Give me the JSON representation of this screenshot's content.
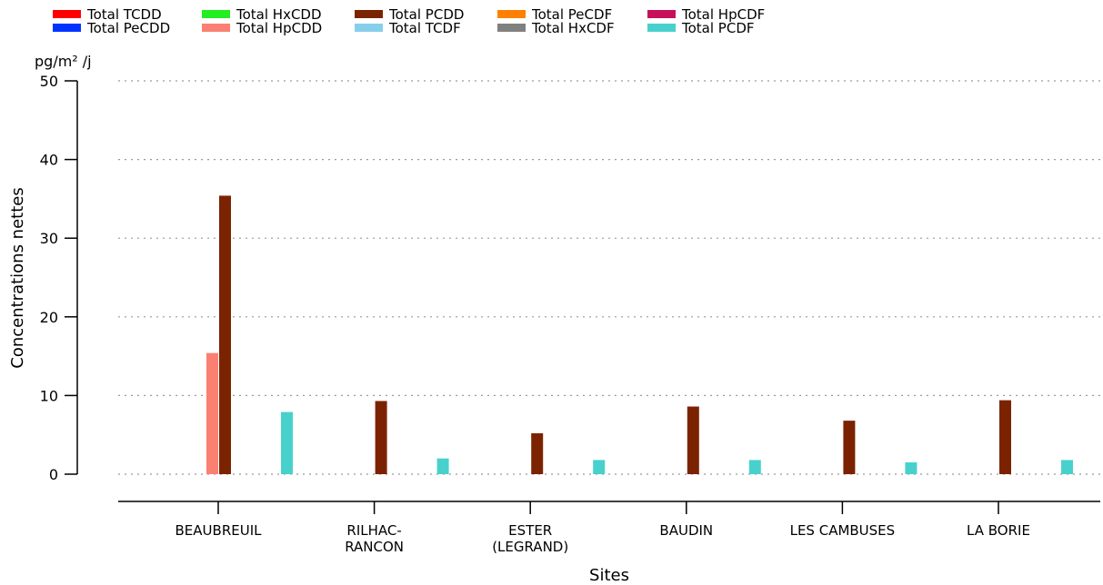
{
  "chart_data": {
    "type": "bar",
    "xlabel": "Sites",
    "ylabel": "Concentrations nettes",
    "unit": "pg/m² /j",
    "ylim": [
      0,
      50
    ],
    "yticks": [
      0,
      10,
      20,
      30,
      40,
      50
    ],
    "grid": true,
    "legend_position": "top",
    "categories": [
      "BEAUBREUIL",
      "RILHAC-\nRANCON",
      "ESTER\n(LEGRAND)",
      "BAUDIN",
      "LES CAMBUSES",
      "LA BORIE"
    ],
    "series": [
      {
        "name": "Total TCDD",
        "color": "#ff0000",
        "values": [
          0,
          0,
          0,
          0,
          0,
          0
        ]
      },
      {
        "name": "Total PeCDD",
        "color": "#0033ff",
        "values": [
          0,
          0,
          0,
          0,
          0,
          0
        ]
      },
      {
        "name": "Total HxCDD",
        "color": "#22ee22",
        "values": [
          0,
          0,
          0,
          0,
          0,
          0
        ]
      },
      {
        "name": "Total HpCDD",
        "color": "#fa8072",
        "values": [
          15.4,
          0,
          0,
          0,
          0,
          0
        ]
      },
      {
        "name": "Total PCDD",
        "color": "#7b2300",
        "values": [
          35.4,
          9.3,
          5.2,
          8.6,
          6.8,
          9.4
        ]
      },
      {
        "name": "Total TCDF",
        "color": "#87ceeb",
        "values": [
          0,
          0,
          0,
          0,
          0,
          0
        ]
      },
      {
        "name": "Total PeCDF",
        "color": "#ff8000",
        "values": [
          0,
          0,
          0,
          0,
          0,
          0
        ]
      },
      {
        "name": "Total HxCDF",
        "color": "#808080",
        "values": [
          0,
          0,
          0,
          0,
          0,
          0
        ]
      },
      {
        "name": "Total HpCDF",
        "color": "#c8105a",
        "values": [
          0,
          0,
          0,
          0,
          0,
          0
        ]
      },
      {
        "name": "Total PCDF",
        "color": "#48d1cc",
        "values": [
          7.9,
          2.0,
          1.8,
          1.8,
          1.5,
          1.8
        ]
      }
    ]
  }
}
